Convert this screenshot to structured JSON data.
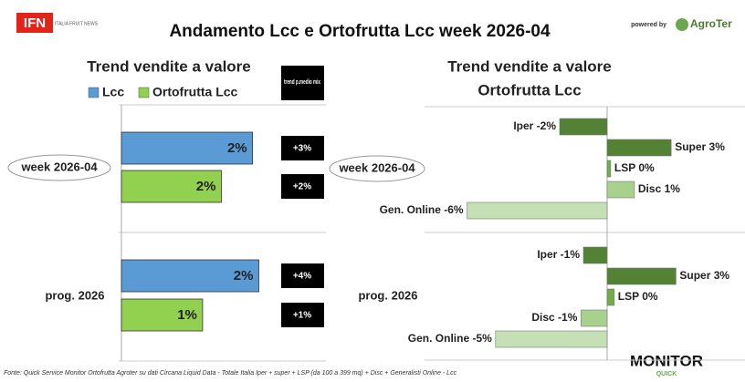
{
  "header": {
    "logo": "IFN",
    "logo_sub": "ITALIA FRUIT NEWS",
    "title": "Andamento Lcc e Ortofrutta Lcc week 2026-04",
    "powered_by": "powered by",
    "brand": "AgroTer"
  },
  "chart_data": [
    {
      "type": "hbar",
      "title": "Trend vendite a valore",
      "categories": [
        "week 2026-04",
        "prog. 2026"
      ],
      "series": [
        {
          "name": "Lcc",
          "color": "#5b9bd5",
          "values": [
            2.1,
            2.2
          ],
          "value_labels": [
            "2%",
            "2%"
          ]
        },
        {
          "name": "Ortofrutta Lcc",
          "color": "#92d050",
          "values": [
            1.6,
            1.3
          ],
          "value_labels": [
            "2%",
            "1%"
          ]
        }
      ],
      "xlim": [
        0,
        2.5
      ],
      "trend_title": "trend p.medio mix",
      "trend_labels": [
        [
          "+3%",
          "+2%"
        ],
        [
          "+4%",
          "+1%"
        ]
      ]
    },
    {
      "type": "diverging",
      "title": "Trend vendite a valore",
      "subtitle": "Ortofrutta Lcc",
      "categories": [
        "week 2026-04",
        "prog. 2026"
      ],
      "colors": [
        "#548235",
        "#548235",
        "#70ad47",
        "#a9d18e",
        "#c5e0b4"
      ],
      "groups": [
        {
          "values": [
            -2,
            2.7,
            0.15,
            1.15,
            -5.9
          ],
          "value_labels": [
            "Iper -2%",
            "Super 3%",
            "LSP 0%",
            "Disc 1%",
            "Gen. Online -6%"
          ]
        },
        {
          "values": [
            -1,
            2.9,
            0.3,
            -1.1,
            -4.7
          ],
          "value_labels": [
            "Iper -1%",
            "Super 3%",
            "LSP 0%",
            "Disc -1%",
            "Gen. Online -5%"
          ]
        }
      ],
      "xlim": [
        -7.5,
        5.5
      ]
    }
  ],
  "footer": {
    "source": "Fonte: Quick Service Monitor Ortofrutta Agroter su dati Circana Liquid Data - Totale Italia Iper + super + LSP (da 100 a 399 mq) + Disc + Generalisti Online - Lcc",
    "logo": "MONITOR",
    "logo_sub": "QUICK"
  }
}
